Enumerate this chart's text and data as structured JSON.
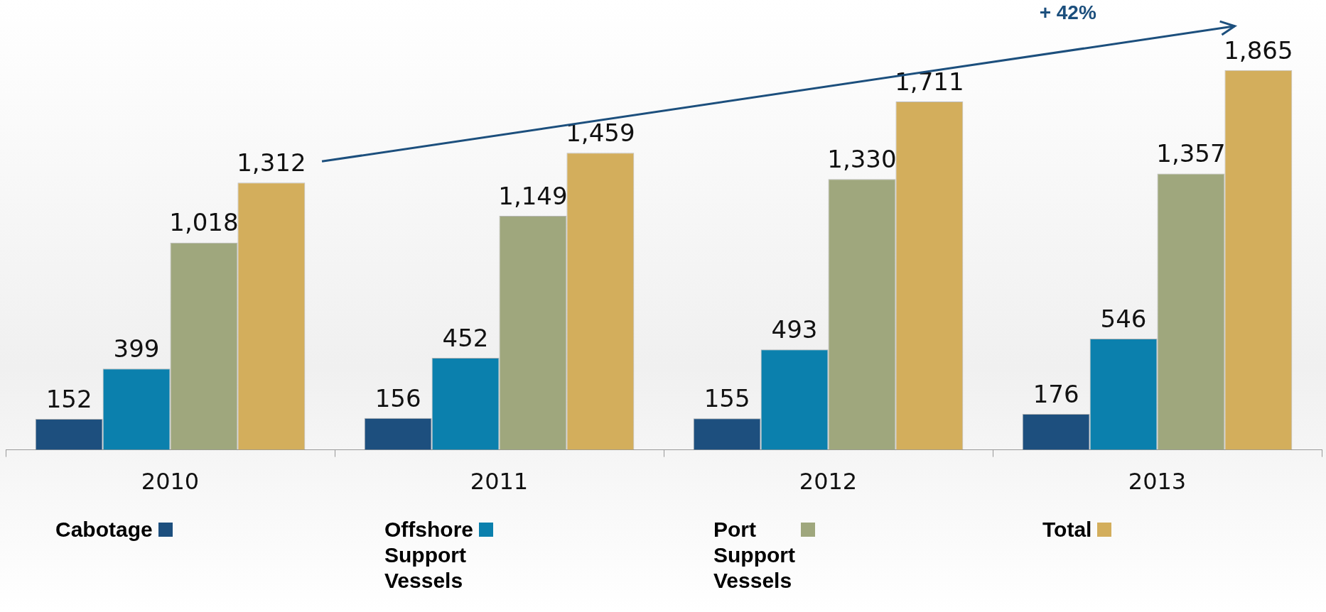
{
  "chart_data": {
    "type": "bar",
    "categories": [
      "2010",
      "2011",
      "2012",
      "2013"
    ],
    "series": [
      {
        "name": "Cabotage",
        "color": "#1d4f7e",
        "values": [
          152,
          156,
          155,
          176
        ],
        "value_labels": [
          "152",
          "156",
          "155",
          "176"
        ]
      },
      {
        "name": "Offshore Support Vessels",
        "color": "#0b80ad",
        "values": [
          399,
          452,
          493,
          546
        ],
        "value_labels": [
          "399",
          "452",
          "493",
          "546"
        ]
      },
      {
        "name": "Port Support Vessels",
        "color": "#9fa77d",
        "values": [
          1018,
          1149,
          1330,
          1357
        ],
        "value_labels": [
          "1,018",
          "1,149",
          "1,330",
          "1,357"
        ]
      },
      {
        "name": "Total",
        "color": "#d3ae5c",
        "values": [
          1312,
          1459,
          1711,
          1865
        ],
        "value_labels": [
          "1,312",
          "1,459",
          "1,711",
          "1,865"
        ]
      }
    ],
    "legend": "bottom",
    "grid": false,
    "annotations": [
      "+ 42%"
    ]
  }
}
